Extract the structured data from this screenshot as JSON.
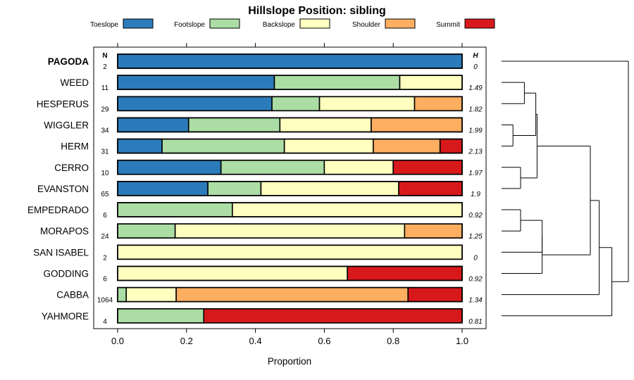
{
  "chart_data": {
    "type": "bar",
    "stacked": true,
    "orientation": "horizontal",
    "title": "Hillslope Position: sibling",
    "xlabel": "Proportion",
    "xlim": [
      0,
      1
    ],
    "x_ticks": [
      "0.0",
      "0.2",
      "0.4",
      "0.6",
      "0.8",
      "1.0"
    ],
    "legend": {
      "position": "top",
      "entries": [
        {
          "name": "Toeslope",
          "color": "#2b7bba"
        },
        {
          "name": "Footslope",
          "color": "#abdda4"
        },
        {
          "name": "Backslope",
          "color": "#ffffbf"
        },
        {
          "name": "Shoulder",
          "color": "#fdae61"
        },
        {
          "name": "Summit",
          "color": "#d7191c"
        }
      ]
    },
    "n_header": "N",
    "h_header": "H",
    "categories": [
      "PAGODA",
      "WEED",
      "HESPERUS",
      "WIGGLER",
      "HERM",
      "CERRO",
      "EVANSTON",
      "EMPEDRADO",
      "MORAPOS",
      "SAN ISABEL",
      "GODDING",
      "CABBA",
      "YAHMORE"
    ],
    "bold_category": "PAGODA",
    "n": [
      "2",
      "11",
      "29",
      "34",
      "31",
      "10",
      "65",
      "6",
      "24",
      "2",
      "6",
      "1064",
      "4"
    ],
    "h": [
      "0",
      "1.49",
      "1.82",
      "1.99",
      "2.13",
      "1.97",
      "1.9",
      "0.92",
      "1.25",
      "0",
      "0.92",
      "1.34",
      "0.81"
    ],
    "series": [
      {
        "name": "Toeslope",
        "values": [
          1.0,
          0.455,
          0.448,
          0.206,
          0.129,
          0.3,
          0.262,
          0,
          0,
          0,
          0,
          0,
          0
        ]
      },
      {
        "name": "Footslope",
        "values": [
          0,
          0.364,
          0.138,
          0.265,
          0.355,
          0.3,
          0.154,
          0.333,
          0.167,
          0,
          0,
          0.025,
          0.25
        ]
      },
      {
        "name": "Backslope",
        "values": [
          0,
          0.181,
          0.276,
          0.265,
          0.258,
          0.2,
          0.4,
          0.667,
          0.666,
          1.0,
          0.667,
          0.145,
          0
        ]
      },
      {
        "name": "Shoulder",
        "values": [
          0,
          0,
          0.138,
          0.264,
          0.194,
          0,
          0,
          0,
          0.167,
          0,
          0,
          0.673,
          0
        ]
      },
      {
        "name": "Summit",
        "values": [
          0,
          0,
          0,
          0,
          0.064,
          0.2,
          0.184,
          0,
          0,
          0,
          0.333,
          0.157,
          0.75
        ]
      }
    ],
    "dendrogram": {
      "type": "hierarchical-clustering",
      "leaf_order": [
        "PAGODA",
        "WEED",
        "HESPERUS",
        "WIGGLER",
        "HERM",
        "CERRO",
        "EVANSTON",
        "EMPEDRADO",
        "MORAPOS",
        "SAN ISABEL",
        "GODDING",
        "CABBA",
        "YAHMORE"
      ],
      "merges": [
        {
          "a": "WIGGLER",
          "b": "HERM",
          "height": 0.09
        },
        {
          "a": "CERRO",
          "b": "EVANSTON",
          "height": 0.15
        },
        {
          "a": "EMPEDRADO",
          "b": "MORAPOS",
          "height": 0.15
        },
        {
          "a": "WEED",
          "b": "HESPERUS",
          "height": 0.18
        },
        {
          "a": "WEED+HESPERUS",
          "b": "WIGGLER+HERM",
          "height": 0.27
        },
        {
          "a": "WEED..HERM",
          "b": "CERRO+EVANSTON",
          "height": 0.28
        },
        {
          "a": "EMPEDRADO+MORAPOS",
          "b": "SAN ISABEL",
          "height": 0.32
        },
        {
          "a": "EMPEDRADO..SAN ISABEL",
          "b": "GODDING",
          "height": 0.32
        },
        {
          "a": "WEED..EVANSTON",
          "b": "EMPEDRADO..GODDING",
          "height": 0.7
        },
        {
          "a": "WEED..GODDING",
          "b": "CABBA",
          "height": 0.77
        },
        {
          "a": "WEED..CABBA",
          "b": "YAHMORE",
          "height": 0.87
        },
        {
          "a": "PAGODA",
          "b": "WEED..YAHMORE",
          "height": 1.0
        }
      ]
    }
  }
}
